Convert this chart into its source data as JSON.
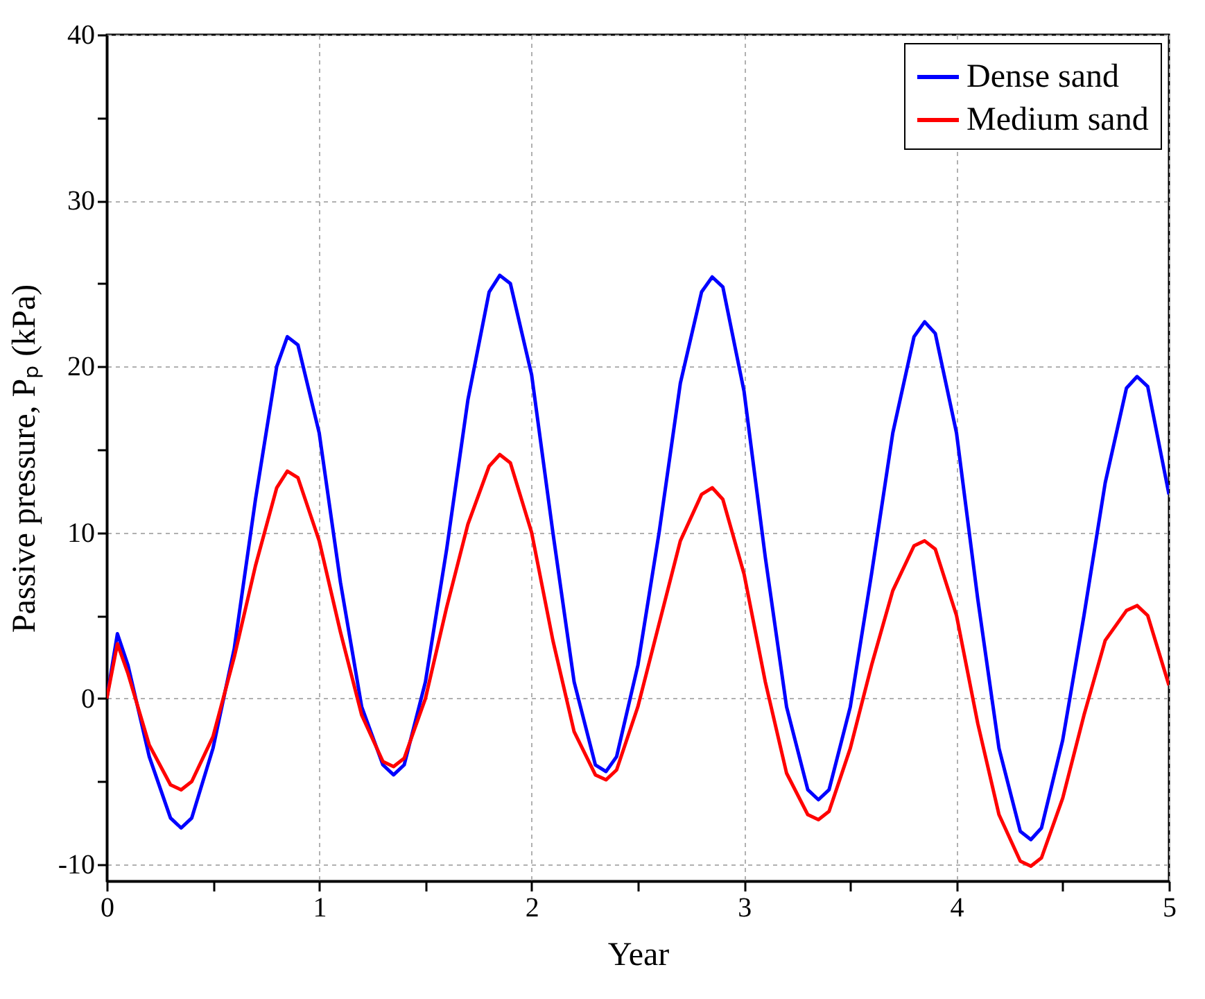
{
  "chart_data": {
    "type": "line",
    "xlabel": "Year",
    "ylabel": "Passive pressure, Pₚ (kPa)",
    "x": [
      0,
      0.05,
      0.1,
      0.2,
      0.3,
      0.35,
      0.4,
      0.5,
      0.6,
      0.7,
      0.8,
      0.85,
      0.9,
      1.0,
      1.1,
      1.2,
      1.3,
      1.35,
      1.4,
      1.5,
      1.6,
      1.7,
      1.8,
      1.85,
      1.9,
      2.0,
      2.1,
      2.2,
      2.3,
      2.35,
      2.4,
      2.5,
      2.6,
      2.7,
      2.8,
      2.85,
      2.9,
      3.0,
      3.1,
      3.2,
      3.3,
      3.35,
      3.4,
      3.5,
      3.6,
      3.7,
      3.8,
      3.85,
      3.9,
      4.0,
      4.1,
      4.2,
      4.3,
      4.35,
      4.4,
      4.5,
      4.6,
      4.7,
      4.8,
      4.85,
      4.9,
      5.0
    ],
    "series": [
      {
        "name": "Dense sand",
        "color": "#0000ff",
        "values": [
          0,
          3.9,
          2,
          -3.5,
          -7.2,
          -7.8,
          -7.2,
          -3,
          3,
          12,
          20,
          21.8,
          21.3,
          16,
          7,
          -0.5,
          -4,
          -4.6,
          -4,
          1,
          9,
          18,
          24.5,
          25.5,
          25,
          19.5,
          10,
          1,
          -4,
          -4.4,
          -3.5,
          2,
          10,
          19,
          24.5,
          25.4,
          24.8,
          18.5,
          8.5,
          -0.5,
          -5.5,
          -6.1,
          -5.5,
          -0.5,
          7.5,
          16,
          21.8,
          22.7,
          22,
          16,
          6,
          -3,
          -8,
          -8.5,
          -7.8,
          -2.5,
          5,
          13,
          18.7,
          19.4,
          18.8,
          12.3
        ]
      },
      {
        "name": "Medium sand",
        "color": "#ff0000",
        "values": [
          0,
          3.3,
          1.5,
          -2.8,
          -5.2,
          -5.5,
          -5,
          -2.3,
          2.5,
          8,
          12.7,
          13.7,
          13.3,
          9.5,
          4,
          -1,
          -3.8,
          -4.1,
          -3.6,
          0,
          5.5,
          10.5,
          14,
          14.7,
          14.2,
          10,
          3.5,
          -2,
          -4.6,
          -4.9,
          -4.3,
          -0.5,
          4.5,
          9.5,
          12.3,
          12.7,
          12,
          7.5,
          1,
          -4.5,
          -7,
          -7.3,
          -6.8,
          -3,
          2,
          6.5,
          9.2,
          9.5,
          9,
          5,
          -1.5,
          -7,
          -9.8,
          -10.1,
          -9.6,
          -6,
          -1,
          3.5,
          5.3,
          5.6,
          5,
          0.8
        ]
      }
    ],
    "xlim": [
      0,
      5
    ],
    "xticks": [
      0,
      {
        "value": 0.5,
        "label": null
      },
      1,
      {
        "value": 1.5,
        "label": null
      },
      2,
      {
        "value": 2.5,
        "label": null
      },
      3,
      {
        "value": 3.5,
        "label": null
      },
      4,
      {
        "value": 4.5,
        "label": null
      },
      5
    ],
    "ylim": [
      -11,
      40
    ],
    "yticks": [
      -10,
      {
        "value": -5,
        "label": null
      },
      0,
      {
        "value": 5,
        "label": null
      },
      10,
      {
        "value": 15,
        "label": null
      },
      20,
      {
        "value": 25,
        "label": null
      },
      30,
      {
        "value": 35,
        "label": null
      },
      40
    ],
    "grid": true,
    "legend": "top right",
    "line_style": "solid",
    "marker": "none"
  }
}
